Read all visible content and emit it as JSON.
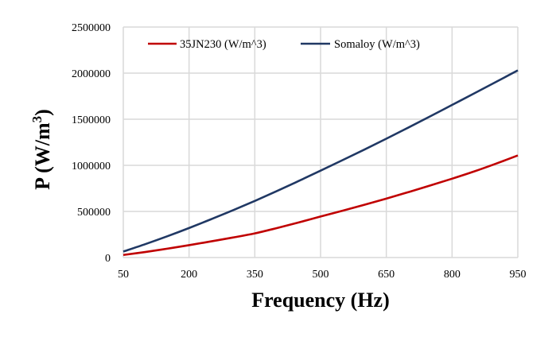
{
  "chart_data": {
    "type": "line",
    "title": "",
    "xlabel": "Frequency (Hz)",
    "ylabel_main": "P (W/m",
    "ylabel_sup": "3",
    "ylabel_close": ")",
    "xlim": [
      50,
      950
    ],
    "ylim": [
      0,
      2500000
    ],
    "grid": true,
    "legend_position": "top-left",
    "x_ticks": [
      "50",
      "200",
      "350",
      "500",
      "650",
      "800",
      "950"
    ],
    "y_ticks": [
      "0",
      "500000",
      "1000000",
      "1500000",
      "2000000",
      "2500000"
    ],
    "x": [
      50,
      100,
      150,
      200,
      250,
      300,
      350,
      400,
      450,
      500,
      550,
      600,
      650,
      700,
      750,
      800,
      850,
      900,
      950
    ],
    "series": [
      {
        "name": "35JN230 (W/m^3)",
        "color": "#C00000",
        "values": [
          28000,
          60000,
          96000,
          134000,
          175000,
          217000,
          262000,
          319000,
          380000,
          445000,
          508000,
          572000,
          639000,
          709000,
          781000,
          855000,
          933000,
          1018000,
          1107000
        ]
      },
      {
        "name": "Somaloy (W/m^3)",
        "color": "#203864",
        "values": [
          65000,
          145000,
          230000,
          320000,
          415000,
          512000,
          614000,
          720000,
          830000,
          942000,
          1056000,
          1171000,
          1289000,
          1409000,
          1531000,
          1655000,
          1779000,
          1904000,
          2030000
        ]
      }
    ],
    "gridline_color": "#D9D9D9"
  }
}
